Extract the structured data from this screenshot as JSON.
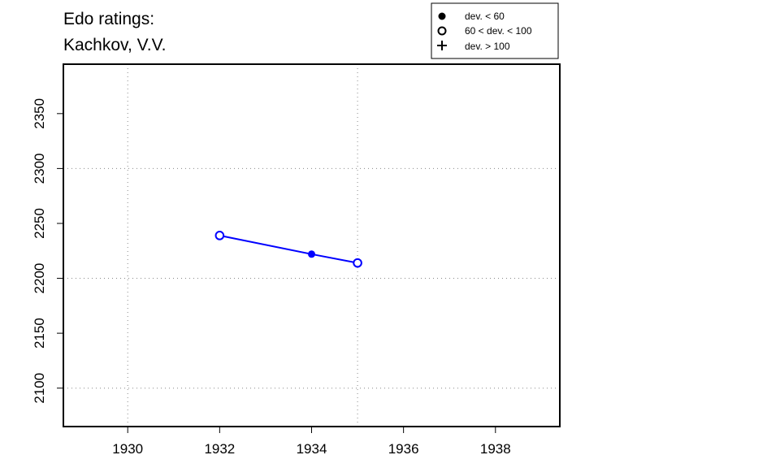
{
  "chart_data": {
    "type": "line",
    "title_lines": [
      "Edo ratings:",
      "Kachkov, V.V."
    ],
    "xlabel": "",
    "ylabel": "",
    "xlim": [
      1928.6,
      1939.4
    ],
    "ylim": [
      2065,
      2395
    ],
    "x_ticks": [
      1930,
      1932,
      1934,
      1936,
      1938
    ],
    "x_tick_labels": [
      "1930",
      "1932",
      "1934",
      "1936",
      "1938"
    ],
    "y_ticks": [
      2100,
      2150,
      2200,
      2250,
      2300,
      2350
    ],
    "y_tick_labels": [
      "2100",
      "2150",
      "2200",
      "2250",
      "2300",
      "2350"
    ],
    "grid_x": [
      1930,
      1935
    ],
    "grid_y": [
      2100,
      2200,
      2300
    ],
    "series": [
      {
        "color": "#0000ff",
        "points": [
          {
            "x": 1932,
            "y": 2239,
            "marker": "open-circle"
          },
          {
            "x": 1934,
            "y": 2222,
            "marker": "filled-circle"
          },
          {
            "x": 1935,
            "y": 2214,
            "marker": "open-circle"
          }
        ]
      }
    ],
    "legend": {
      "placement": "top-right",
      "entries": [
        {
          "marker": "filled-circle",
          "label": "dev. < 60"
        },
        {
          "marker": "open-circle",
          "label": "60 < dev. < 100"
        },
        {
          "marker": "plus",
          "label": "dev. > 100"
        }
      ]
    }
  }
}
